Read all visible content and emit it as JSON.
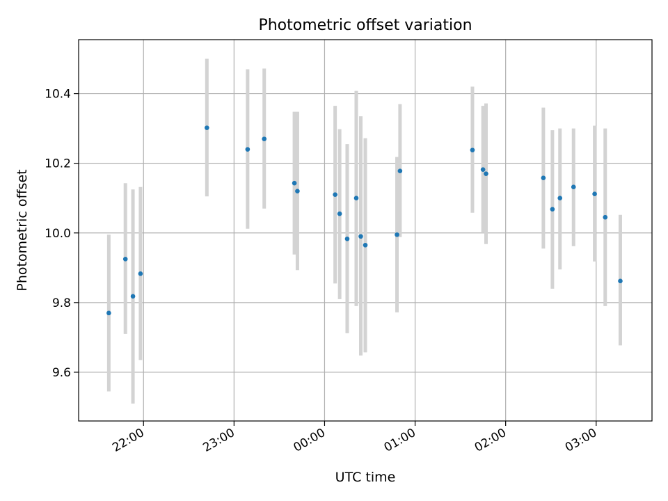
{
  "chart_data": {
    "type": "scatter",
    "title": "Photometric offset variation",
    "xlabel": "UTC time",
    "ylabel": "Photometric offset",
    "xlim": [
      "21:17",
      "03:37"
    ],
    "ylim": [
      9.46,
      10.555
    ],
    "x_ticks": [
      "22:00",
      "23:00",
      "00:00",
      "01:00",
      "02:00",
      "03:00"
    ],
    "y_ticks": [
      9.6,
      9.8,
      10.0,
      10.2,
      10.4
    ],
    "grid": true,
    "legend": "none",
    "colors": {
      "points": "#1f77b4",
      "errorbars": "#d3d3d3",
      "grid": "#b0b0b0"
    },
    "points": [
      {
        "x": "21:37",
        "y": 9.77,
        "ylow": 9.545,
        "yhigh": 9.995
      },
      {
        "x": "21:48",
        "y": 9.925,
        "ylow": 9.71,
        "yhigh": 10.143
      },
      {
        "x": "21:53",
        "y": 9.818,
        "ylow": 9.51,
        "yhigh": 10.125
      },
      {
        "x": "21:58",
        "y": 9.883,
        "ylow": 9.635,
        "yhigh": 10.132
      },
      {
        "x": "22:42",
        "y": 10.302,
        "ylow": 10.105,
        "yhigh": 10.5
      },
      {
        "x": "23:09",
        "y": 10.24,
        "ylow": 10.012,
        "yhigh": 10.47
      },
      {
        "x": "23:20",
        "y": 10.27,
        "ylow": 10.07,
        "yhigh": 10.472
      },
      {
        "x": "23:40",
        "y": 10.143,
        "ylow": 9.938,
        "yhigh": 10.348
      },
      {
        "x": "23:42",
        "y": 10.12,
        "ylow": 9.893,
        "yhigh": 10.348
      },
      {
        "x": "00:07",
        "y": 10.11,
        "ylow": 9.855,
        "yhigh": 10.365
      },
      {
        "x": "00:10",
        "y": 10.055,
        "ylow": 9.81,
        "yhigh": 10.298
      },
      {
        "x": "00:15",
        "y": 9.983,
        "ylow": 9.712,
        "yhigh": 10.255
      },
      {
        "x": "00:21",
        "y": 10.1,
        "ylow": 9.79,
        "yhigh": 10.408
      },
      {
        "x": "00:24",
        "y": 9.99,
        "ylow": 9.648,
        "yhigh": 10.335
      },
      {
        "x": "00:27",
        "y": 9.965,
        "ylow": 9.657,
        "yhigh": 10.272
      },
      {
        "x": "00:48",
        "y": 9.995,
        "ylow": 9.772,
        "yhigh": 10.218
      },
      {
        "x": "00:50",
        "y": 10.178,
        "ylow": 9.988,
        "yhigh": 10.37
      },
      {
        "x": "01:38",
        "y": 10.238,
        "ylow": 10.058,
        "yhigh": 10.42
      },
      {
        "x": "01:45",
        "y": 10.182,
        "ylow": 10.0,
        "yhigh": 10.365
      },
      {
        "x": "01:47",
        "y": 10.17,
        "ylow": 9.968,
        "yhigh": 10.372
      },
      {
        "x": "02:25",
        "y": 10.158,
        "ylow": 9.955,
        "yhigh": 10.36
      },
      {
        "x": "02:31",
        "y": 10.068,
        "ylow": 9.84,
        "yhigh": 10.295
      },
      {
        "x": "02:36",
        "y": 10.1,
        "ylow": 9.895,
        "yhigh": 10.3
      },
      {
        "x": "02:45",
        "y": 10.132,
        "ylow": 9.962,
        "yhigh": 10.3
      },
      {
        "x": "02:59",
        "y": 10.112,
        "ylow": 9.918,
        "yhigh": 10.308
      },
      {
        "x": "03:06",
        "y": 10.045,
        "ylow": 9.79,
        "yhigh": 10.3
      },
      {
        "x": "03:16",
        "y": 9.862,
        "ylow": 9.677,
        "yhigh": 10.052
      }
    ]
  }
}
